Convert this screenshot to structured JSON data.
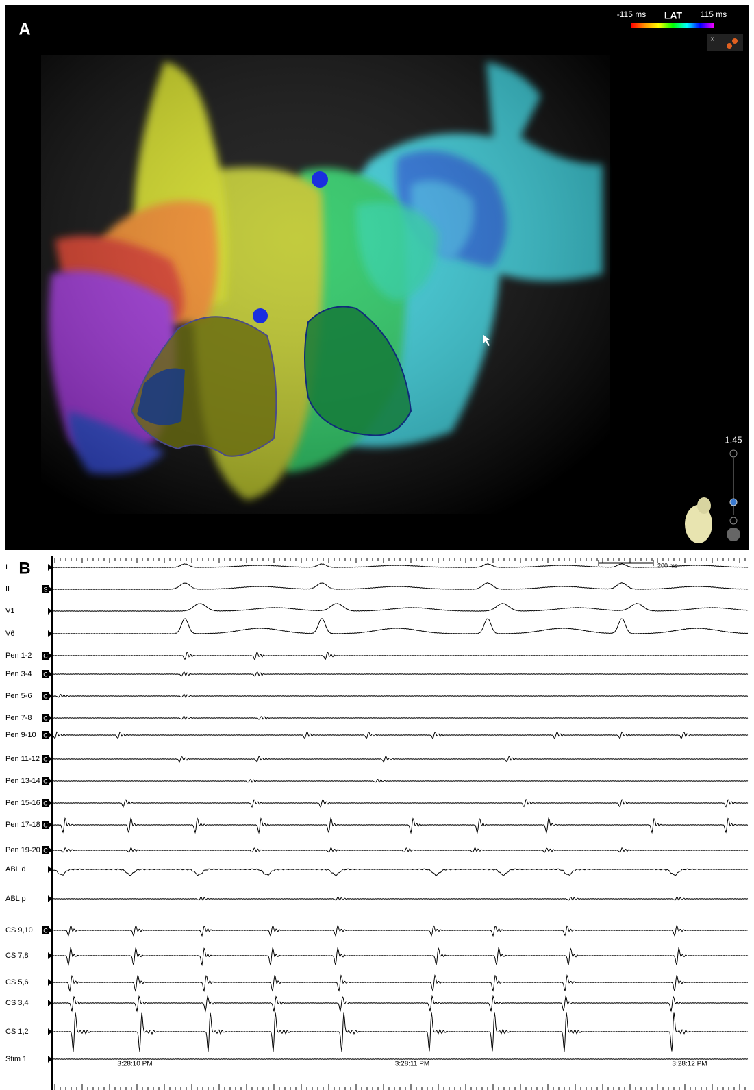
{
  "panel_a": {
    "label": "A",
    "legend": {
      "min": "-115 ms",
      "title": "LAT",
      "max": "115 ms"
    },
    "widget_close": "x",
    "zoom": "1.45"
  },
  "panel_b": {
    "label": "B",
    "scale_bar": "200 ms",
    "channels": [
      {
        "name": "I"
      },
      {
        "name": "II",
        "badge": "S"
      },
      {
        "name": "V1"
      },
      {
        "name": "V6"
      },
      {
        "name": "Pen 1-2",
        "badge": "C"
      },
      {
        "name": "Pen 3-4",
        "badge": "C"
      },
      {
        "name": "Pen 5-6",
        "badge": "C"
      },
      {
        "name": "Pen 7-8",
        "badge": "C"
      },
      {
        "name": "Pen 9-10",
        "badge": "C"
      },
      {
        "name": "Pen 11-12",
        "badge": "C"
      },
      {
        "name": "Pen 13-14",
        "badge": "C"
      },
      {
        "name": "Pen 15-16",
        "badge": "C"
      },
      {
        "name": "Pen 17-18",
        "badge": "C"
      },
      {
        "name": "Pen 19-20",
        "badge": "C"
      },
      {
        "name": "ABL d"
      },
      {
        "name": "ABL p"
      },
      {
        "name": "CS 9,10",
        "badge": "C"
      },
      {
        "name": "CS 7,8"
      },
      {
        "name": "CS 5,6"
      },
      {
        "name": "CS 3,4"
      },
      {
        "name": "CS 1,2"
      },
      {
        "name": "Stim 1"
      }
    ],
    "timestamps": [
      "3:28:10 PM",
      "3:28:11 PM",
      "3:28:12 PM"
    ]
  }
}
